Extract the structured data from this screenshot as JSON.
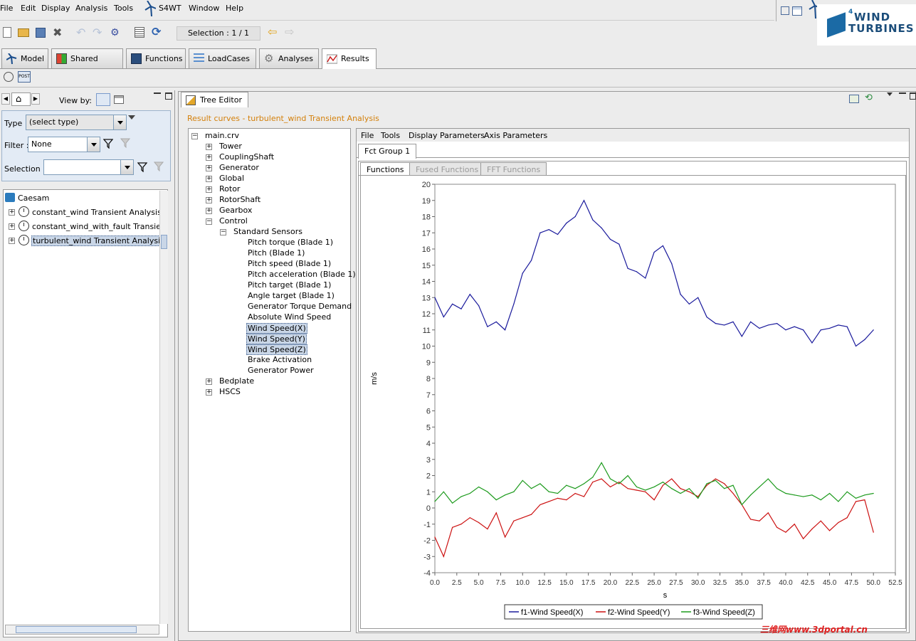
{
  "menubar": {
    "items": [
      "File",
      "Edit",
      "Display",
      "Analysis",
      "Tools",
      "S4WT",
      "Window",
      "Help"
    ]
  },
  "brand": {
    "line1": "WIND",
    "line2": "TURBINES",
    "superscript": "4"
  },
  "toolbar": {
    "selection_label": "Selection : 1 / 1"
  },
  "tabs": [
    {
      "label": "Model"
    },
    {
      "label": "Shared Data"
    },
    {
      "label": "Functions"
    },
    {
      "label": "LoadCases"
    },
    {
      "label": "Analyses"
    },
    {
      "label": "Results"
    }
  ],
  "left_panel": {
    "view_by_label": "View by:",
    "type_label": "Type :",
    "type_value": "(select type)",
    "filter_label": "Filter :",
    "filter_value": "None",
    "selection_label": "Selection :",
    "selection_value": "",
    "tree": {
      "root": "Caesam",
      "items": [
        "constant_wind Transient Analysis",
        "constant_wind_with_fault Transient A",
        "turbulent_wind Transient Analysis"
      ]
    }
  },
  "editor": {
    "tab_label": "Tree Editor",
    "result_title": "Result curves - turbulent_wind Transient Analysis",
    "curve_tree": {
      "root": "main.crv",
      "top_nodes": [
        "Tower",
        "CouplingShaft",
        "Generator",
        "Global",
        "Rotor",
        "RotorShaft",
        "Gearbox",
        "Control"
      ],
      "control_child": "Standard Sensors",
      "sensors": [
        "Pitch torque (Blade 1)",
        "Pitch (Blade 1)",
        "Pitch speed (Blade 1)",
        "Pitch acceleration (Blade 1)",
        "Pitch target (Blade 1)",
        "Angle target (Blade 1)",
        "Generator Torque Demand",
        "Absolute Wind Speed",
        "Wind Speed(X)",
        "Wind Speed(Y)",
        "Wind Speed(Z)",
        "Brake Activation",
        "Generator Power"
      ],
      "bottom_nodes": [
        "Bedplate",
        "HSCS"
      ]
    },
    "plot_menu": [
      "File",
      "Tools",
      "Display Parameters",
      "Axis Parameters"
    ],
    "group_tab": "Fct Group 1",
    "sub_tabs": [
      "Functions",
      "Fused Functions",
      "FFT Functions"
    ]
  },
  "chart_data": {
    "type": "line",
    "xlabel": "s",
    "ylabel": "m/s",
    "xlim": [
      0,
      52.5
    ],
    "ylim": [
      -4,
      20
    ],
    "xticks": [
      "0.0",
      "2.5",
      "5.0",
      "7.5",
      "10.0",
      "12.5",
      "15.0",
      "17.5",
      "20.0",
      "22.5",
      "25.0",
      "27.5",
      "30.0",
      "32.5",
      "35.0",
      "37.5",
      "40.0",
      "42.5",
      "45.0",
      "47.5",
      "50.0",
      "52.5"
    ],
    "yticks": [
      "-4",
      "-3",
      "-2",
      "-1",
      "0",
      "1",
      "2",
      "3",
      "4",
      "5",
      "6",
      "7",
      "8",
      "9",
      "10",
      "11",
      "12",
      "13",
      "14",
      "15",
      "16",
      "17",
      "18",
      "19",
      "20"
    ],
    "grid": true,
    "legend_position": "bottom",
    "series": [
      {
        "name": "f1-Wind Speed(X)",
        "color": "#1a1a9c",
        "x": [
          0,
          1,
          2,
          3,
          4,
          5,
          6,
          7,
          8,
          9,
          10,
          11,
          12,
          13,
          14,
          15,
          16,
          17,
          18,
          19,
          20,
          21,
          22,
          23,
          24,
          25,
          26,
          27,
          28,
          29,
          30,
          31,
          32,
          33,
          34,
          35,
          36,
          37,
          38,
          39,
          40,
          41,
          42,
          43,
          44,
          45,
          46,
          47,
          48,
          49,
          50
        ],
        "values": [
          13.0,
          11.8,
          12.6,
          12.3,
          13.2,
          12.5,
          11.2,
          11.5,
          11.0,
          12.6,
          14.5,
          15.3,
          17.0,
          17.2,
          16.9,
          17.6,
          18.0,
          19.0,
          17.8,
          17.3,
          16.6,
          16.3,
          14.8,
          14.6,
          14.2,
          15.8,
          16.2,
          15.1,
          13.2,
          12.6,
          13.0,
          11.8,
          11.4,
          11.3,
          11.5,
          10.6,
          11.5,
          11.1,
          11.3,
          11.4,
          11.0,
          11.2,
          11.0,
          10.2,
          11.0,
          11.1,
          11.3,
          11.2,
          10.0,
          10.4,
          11.0
        ]
      },
      {
        "name": "f2-Wind Speed(Y)",
        "color": "#cc1111",
        "x": [
          0,
          1,
          2,
          3,
          4,
          5,
          6,
          7,
          8,
          9,
          10,
          11,
          12,
          13,
          14,
          15,
          16,
          17,
          18,
          19,
          20,
          21,
          22,
          23,
          24,
          25,
          26,
          27,
          28,
          29,
          30,
          31,
          32,
          33,
          34,
          35,
          36,
          37,
          38,
          39,
          40,
          41,
          42,
          43,
          44,
          45,
          46,
          47,
          48,
          49,
          50
        ],
        "values": [
          -1.8,
          -3.0,
          -1.2,
          -1.0,
          -0.6,
          -0.9,
          -1.3,
          -0.3,
          -1.8,
          -0.8,
          -0.6,
          -0.4,
          0.2,
          0.4,
          0.6,
          0.5,
          0.9,
          0.7,
          1.6,
          1.8,
          1.3,
          1.6,
          1.2,
          1.1,
          1.0,
          0.5,
          1.4,
          1.8,
          1.2,
          1.0,
          0.7,
          1.4,
          1.8,
          1.5,
          0.9,
          0.2,
          -0.7,
          -0.8,
          -0.3,
          -1.2,
          -1.5,
          -1.0,
          -1.9,
          -1.3,
          -0.8,
          -1.4,
          -0.9,
          -0.6,
          0.4,
          0.5,
          -1.5
        ]
      },
      {
        "name": "f3-Wind Speed(Z)",
        "color": "#1c9a1c",
        "x": [
          0,
          1,
          2,
          3,
          4,
          5,
          6,
          7,
          8,
          9,
          10,
          11,
          12,
          13,
          14,
          15,
          16,
          17,
          18,
          19,
          20,
          21,
          22,
          23,
          24,
          25,
          26,
          27,
          28,
          29,
          30,
          31,
          32,
          33,
          34,
          35,
          36,
          37,
          38,
          39,
          40,
          41,
          42,
          43,
          44,
          45,
          46,
          47,
          48,
          49,
          50
        ],
        "values": [
          0.4,
          1.0,
          0.3,
          0.7,
          0.9,
          1.3,
          1.0,
          0.5,
          0.8,
          1.0,
          1.7,
          1.2,
          1.5,
          1.0,
          0.9,
          1.4,
          1.2,
          1.5,
          1.9,
          2.8,
          1.8,
          1.5,
          2.0,
          1.3,
          1.1,
          1.3,
          1.6,
          1.2,
          0.9,
          1.2,
          0.6,
          1.5,
          1.7,
          1.2,
          1.4,
          0.2,
          0.8,
          1.3,
          1.8,
          1.2,
          0.9,
          0.8,
          0.7,
          0.8,
          0.5,
          0.9,
          0.4,
          1.0,
          0.6,
          0.8,
          0.9
        ]
      }
    ]
  },
  "watermark": "三维网www.3dportal.cn"
}
